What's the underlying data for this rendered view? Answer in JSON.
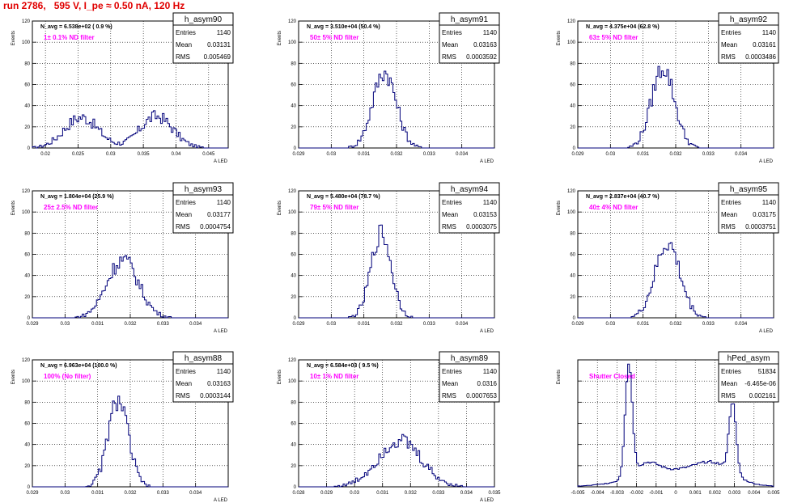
{
  "header": "run 2786,   595 V, I_pe ≈ 0.50 nA, 120 Hz",
  "colors": {
    "hist": "#00007a",
    "header": "#e00000",
    "filter_label": "#ff00ff",
    "grid": "#000000"
  },
  "chart_data": [
    {
      "type": "histogram",
      "name": "h_asym90",
      "stats": {
        "Entries": "1140",
        "Mean": "0.03131",
        "RMS": "0.005469"
      },
      "navg": "N_avg = 6.538e+02 ( 0.9 %)",
      "label": "1± 0.1% ND filter",
      "ylabel": "Events",
      "xlabel": "A_LED",
      "xlim": [
        0.018,
        0.048
      ],
      "ylim": [
        0,
        120
      ],
      "xticks": [
        "0.02",
        "0.025",
        "0.03",
        "0.035",
        "0.04",
        "0.045"
      ],
      "xtick_vals": [
        0.02,
        0.025,
        0.03,
        0.035,
        0.04,
        0.045
      ],
      "yticks": [
        0,
        20,
        40,
        60,
        80,
        100,
        120
      ],
      "components": [
        {
          "mu": 0.0255,
          "sigma": 0.0026,
          "amp": 29
        },
        {
          "mu": 0.037,
          "sigma": 0.0025,
          "amp": 30
        }
      ]
    },
    {
      "type": "histogram",
      "name": "h_asym91",
      "stats": {
        "Entries": "1140",
        "Mean": "0.03163",
        "RMS": "0.0003592"
      },
      "navg": "N_avg = 3.510e+04 (50.4 %)",
      "label": "50± 5% ND filter",
      "ylabel": "Events",
      "xlabel": "A_LED",
      "xlim": [
        0.029,
        0.035
      ],
      "ylim": [
        0,
        120
      ],
      "xticks": [
        "0.029",
        "0.03",
        "0.031",
        "0.032",
        "0.033",
        "0.034"
      ],
      "xtick_vals": [
        0.029,
        0.03,
        0.031,
        0.032,
        0.033,
        0.034
      ],
      "yticks": [
        0,
        20,
        40,
        60,
        80,
        100,
        120
      ],
      "components": [
        {
          "mu": 0.03163,
          "sigma": 0.00036,
          "amp": 72
        }
      ]
    },
    {
      "type": "histogram",
      "name": "h_asym92",
      "stats": {
        "Entries": "1140",
        "Mean": "0.03161",
        "RMS": "0.0003486"
      },
      "navg": "N_avg = 4.375e+04 (62.8 %)",
      "label": "63± 5% ND filter",
      "ylabel": "Events",
      "xlabel": "A_LED",
      "xlim": [
        0.029,
        0.035
      ],
      "ylim": [
        0,
        120
      ],
      "xticks": [
        "0.029",
        "0.03",
        "0.031",
        "0.032",
        "0.033",
        "0.034"
      ],
      "xtick_vals": [
        0.029,
        0.03,
        0.031,
        0.032,
        0.033,
        0.034
      ],
      "yticks": [
        0,
        20,
        40,
        60,
        80,
        100,
        120
      ],
      "components": [
        {
          "mu": 0.03161,
          "sigma": 0.00035,
          "amp": 76
        }
      ]
    },
    {
      "type": "histogram",
      "name": "h_asym93",
      "stats": {
        "Entries": "1140",
        "Mean": "0.03177",
        "RMS": "0.0004754"
      },
      "navg": "N_avg = 1.804e+04 (25.9 %)",
      "label": "25± 2.5% ND filter",
      "ylabel": "Events",
      "xlabel": "A_LED",
      "xlim": [
        0.029,
        0.035
      ],
      "ylim": [
        0,
        120
      ],
      "xticks": [
        "0.029",
        "0.03",
        "0.031",
        "0.032",
        "0.033",
        "0.034"
      ],
      "xtick_vals": [
        0.029,
        0.03,
        0.031,
        0.032,
        0.033,
        0.034
      ],
      "yticks": [
        0,
        20,
        40,
        60,
        80,
        100,
        120
      ],
      "components": [
        {
          "mu": 0.03177,
          "sigma": 0.00048,
          "amp": 55
        }
      ]
    },
    {
      "type": "histogram",
      "name": "h_asym94",
      "stats": {
        "Entries": "1140",
        "Mean": "0.03153",
        "RMS": "0.0003075"
      },
      "navg": "N_avg = 5.480e+04 (78.7 %)",
      "label": "79± 5% ND filter",
      "ylabel": "Events",
      "xlabel": "A_LED",
      "xlim": [
        0.029,
        0.035
      ],
      "ylim": [
        0,
        120
      ],
      "xticks": [
        "0.029",
        "0.03",
        "0.031",
        "0.032",
        "0.033",
        "0.034"
      ],
      "xtick_vals": [
        0.029,
        0.03,
        0.031,
        0.032,
        0.033,
        0.034
      ],
      "yticks": [
        0,
        20,
        40,
        60,
        80,
        100,
        120
      ],
      "components": [
        {
          "mu": 0.03153,
          "sigma": 0.00031,
          "amp": 80
        }
      ]
    },
    {
      "type": "histogram",
      "name": "h_asym95",
      "stats": {
        "Entries": "1140",
        "Mean": "0.03175",
        "RMS": "0.0003751"
      },
      "navg": "N_avg = 2.837e+04 (40.7 %)",
      "label": "40± 4% ND filter",
      "ylabel": "Events",
      "xlabel": "A_LED",
      "xlim": [
        0.029,
        0.035
      ],
      "ylim": [
        0,
        120
      ],
      "xticks": [
        "0.029",
        "0.03",
        "0.031",
        "0.032",
        "0.033",
        "0.034"
      ],
      "xtick_vals": [
        0.029,
        0.03,
        0.031,
        0.032,
        0.033,
        0.034
      ],
      "yticks": [
        0,
        20,
        40,
        60,
        80,
        100,
        120
      ],
      "components": [
        {
          "mu": 0.03175,
          "sigma": 0.00038,
          "amp": 70
        }
      ]
    },
    {
      "type": "histogram",
      "name": "h_asym88",
      "stats": {
        "Entries": "1140",
        "Mean": "0.03163",
        "RMS": "0.0003144"
      },
      "navg": "N_avg = 6.963e+04 (100.0 %)",
      "label": "100% (No filter)",
      "ylabel": "Events",
      "xlabel": "A_LED",
      "xlim": [
        0.029,
        0.035
      ],
      "ylim": [
        0,
        120
      ],
      "xticks": [
        "0.029",
        "0.03",
        "0.031",
        "0.032",
        "0.033",
        "0.034"
      ],
      "xtick_vals": [
        0.029,
        0.03,
        0.031,
        0.032,
        0.033,
        0.034
      ],
      "yticks": [
        0,
        20,
        40,
        60,
        80,
        100,
        120
      ],
      "components": [
        {
          "mu": 0.03163,
          "sigma": 0.00031,
          "amp": 82
        }
      ]
    },
    {
      "type": "histogram",
      "name": "h_asym89",
      "stats": {
        "Entries": "1140",
        "Mean": "0.0316",
        "RMS": "0.0007653"
      },
      "navg": "N_avg = 6.584e+03 ( 9.5 %)",
      "label": "10± 1% ND filter",
      "ylabel": "Events",
      "xlabel": "A_LED",
      "xlim": [
        0.028,
        0.035
      ],
      "ylim": [
        0,
        120
      ],
      "xticks": [
        "0.028",
        "0.029",
        "0.03",
        "0.031",
        "0.032",
        "0.033",
        "0.034",
        "0.035"
      ],
      "xtick_vals": [
        0.028,
        0.029,
        0.03,
        0.031,
        0.032,
        0.033,
        0.034,
        0.035
      ],
      "yticks": [
        0,
        20,
        40,
        60,
        80,
        100,
        120
      ],
      "components": [
        {
          "mu": 0.0316,
          "sigma": 0.00077,
          "amp": 44
        }
      ]
    },
    {
      "type": "histogram",
      "name": "hPed_asym",
      "stats": {
        "Entries": "51834",
        "Mean": "-6.465e-06",
        "RMS": "0.002161"
      },
      "navg": "",
      "label": "Shutter Closed",
      "ylabel": "Events",
      "xlabel": "",
      "xlim": [
        -0.005,
        0.005
      ],
      "ylim": [
        0,
        2600
      ],
      "xticks": [
        "-0.005",
        "-0.004",
        "-0.003",
        "-0.002",
        "-0.001",
        "0",
        "0.001",
        "0.002",
        "0.003",
        "0.004",
        "0.005"
      ],
      "xtick_vals": [
        -0.005,
        -0.004,
        -0.003,
        -0.002,
        -0.001,
        0,
        0.001,
        0.002,
        0.003,
        0.004,
        0.005
      ],
      "yticks": [],
      "components": [
        {
          "mu": -0.0024,
          "sigma": 0.00018,
          "amp": 2300
        },
        {
          "mu": 0.0029,
          "sigma": 0.00018,
          "amp": 1450
        },
        {
          "mu": 0.002,
          "sigma": 0.0009,
          "amp": 300
        },
        {
          "mu": -0.0015,
          "sigma": 0.0006,
          "amp": 250
        },
        {
          "mu": 0.0,
          "sigma": 0.002,
          "amp": 330
        }
      ]
    }
  ]
}
